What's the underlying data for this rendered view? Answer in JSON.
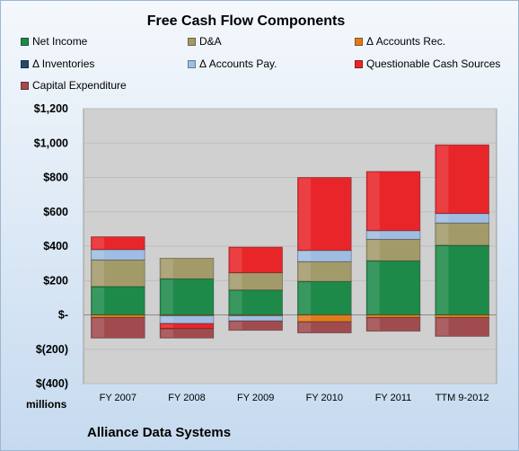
{
  "chart_data": {
    "type": "bar",
    "stacked": true,
    "title": "Free Cash Flow Components",
    "units_label": "millions",
    "company": "Alliance Data Systems",
    "categories": [
      "FY 2007",
      "FY 2008",
      "FY 2009",
      "FY 2010",
      "FY 2011",
      "TTM 9-2012"
    ],
    "ylim": [
      -400,
      1200
    ],
    "yticks": [
      -400,
      -200,
      0,
      200,
      400,
      600,
      800,
      1000,
      1200
    ],
    "ytick_labels": [
      "$(400)",
      "$(200)",
      "$-",
      "$200",
      "$400",
      "$600",
      "$800",
      "$1,000",
      "$1,200"
    ],
    "grid": true,
    "legend_position": "top",
    "series": [
      {
        "name": "Net Income",
        "color": "#1e8a4a",
        "values": [
          165,
          210,
          145,
          195,
          315,
          405
        ]
      },
      {
        "name": "D&A",
        "color": "#a39a6a",
        "values": [
          155,
          120,
          100,
          115,
          125,
          130
        ]
      },
      {
        "name": "Δ Accounts Rec.",
        "color": "#e07b1c",
        "values": [
          -15,
          -5,
          -5,
          -40,
          -15,
          -15
        ]
      },
      {
        "name": "Δ Inventories",
        "color": "#244b6e",
        "values": [
          0,
          0,
          0,
          0,
          0,
          0
        ]
      },
      {
        "name": "Δ Accounts Pay.",
        "color": "#9fbde2",
        "values": [
          60,
          -45,
          -30,
          65,
          50,
          55
        ]
      },
      {
        "name": "Questionable Cash Sources",
        "color": "#e8262a",
        "values": [
          75,
          -30,
          150,
          425,
          345,
          400
        ]
      },
      {
        "name": "Capital Expenditure",
        "color": "#a04c4e",
        "values": [
          -120,
          -55,
          -55,
          -65,
          -80,
          -110
        ]
      }
    ]
  }
}
